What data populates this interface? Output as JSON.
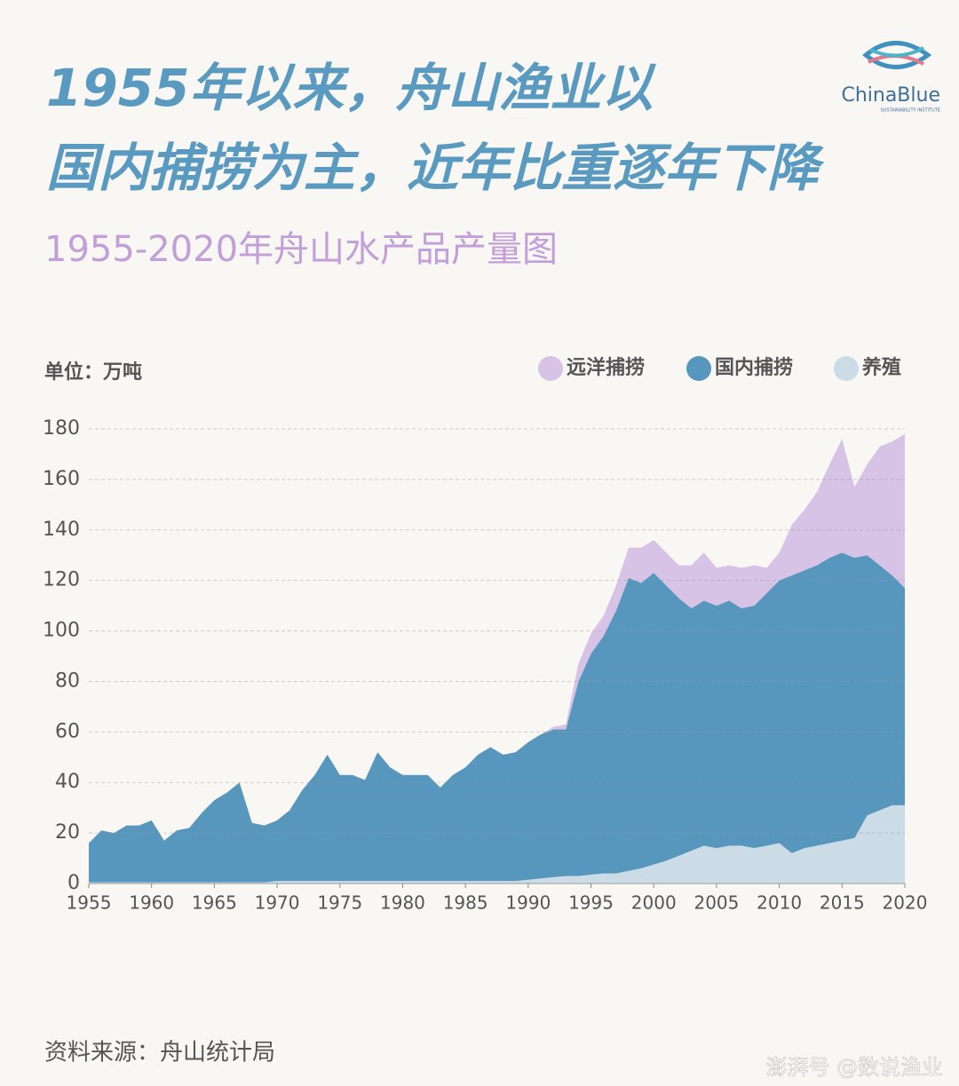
{
  "chart_data": {
    "type": "stacked_area",
    "title": [
      "1955年以来，舟山渔业以",
      "国内捕捞为主，近年比重逐年下降"
    ],
    "subtitle": "1955-2020年舟山水产品产量图",
    "y_label": "单位：万吨",
    "source": "资料来源：舟山统计局",
    "logo": {
      "name": "ChinaBlue",
      "tagline": "SUSTAINABILITY INSTITUTE"
    },
    "watermark": "澎湃号 @数说渔业",
    "x": [
      1955,
      1956,
      1957,
      1958,
      1959,
      1960,
      1961,
      1962,
      1963,
      1964,
      1965,
      1966,
      1967,
      1968,
      1969,
      1970,
      1971,
      1972,
      1973,
      1974,
      1975,
      1976,
      1977,
      1978,
      1979,
      1980,
      1981,
      1982,
      1983,
      1984,
      1985,
      1986,
      1987,
      1988,
      1989,
      1990,
      1991,
      1992,
      1993,
      1994,
      1995,
      1996,
      1997,
      1998,
      1999,
      2000,
      2001,
      2002,
      2003,
      2004,
      2005,
      2006,
      2007,
      2008,
      2009,
      2010,
      2011,
      2012,
      2013,
      2014,
      2015,
      2016,
      2017,
      2018,
      2019,
      2020
    ],
    "series": [
      {
        "name": "远洋捕捞",
        "color": "#d6c3e5",
        "values": [
          0,
          0,
          0,
          0,
          0,
          0,
          0,
          0,
          0,
          0,
          0,
          0,
          0,
          0,
          0,
          0,
          0,
          0,
          0,
          0,
          0,
          0,
          0,
          0,
          0,
          0,
          0,
          0,
          0,
          0,
          0,
          0,
          0,
          0,
          0,
          0,
          0,
          1,
          2,
          7,
          8,
          8,
          10,
          12,
          14,
          13,
          13,
          13,
          17,
          19,
          15,
          14,
          16,
          16,
          10,
          11,
          20,
          24,
          29,
          37,
          45,
          28,
          36,
          47,
          53,
          61
        ]
      },
      {
        "name": "国内捕捞",
        "color": "#5796bd",
        "values": [
          15.5,
          20.5,
          19.5,
          22.5,
          22.5,
          24.5,
          16.5,
          20.5,
          21.5,
          27.5,
          32.5,
          35.5,
          39.5,
          23.5,
          22.5,
          24,
          28,
          36,
          42,
          50,
          42,
          42,
          40,
          51,
          45,
          42,
          42,
          42,
          37,
          42,
          45,
          50,
          53,
          50,
          51,
          54.5,
          57,
          58.5,
          58,
          77,
          87.5,
          94,
          104,
          116,
          113,
          115.5,
          109,
          102,
          96,
          97,
          96,
          97,
          94,
          96,
          100,
          104,
          110,
          110,
          111,
          113,
          114,
          111,
          103,
          97,
          91,
          86
        ]
      },
      {
        "name": "养殖",
        "color": "#ccdce7",
        "values": [
          0.5,
          0.5,
          0.5,
          0.5,
          0.5,
          0.5,
          0.5,
          0.5,
          0.5,
          0.5,
          0.5,
          0.5,
          0.5,
          0.5,
          0.5,
          1,
          1,
          1,
          1,
          1,
          1,
          1,
          1,
          1,
          1,
          1,
          1,
          1,
          1,
          1,
          1,
          1,
          1,
          1,
          1,
          1.5,
          2,
          2.5,
          3,
          3,
          3.5,
          4,
          4,
          5,
          6,
          7.5,
          9,
          11,
          13,
          15,
          14,
          15,
          15,
          14,
          15,
          16,
          12,
          14,
          15,
          16,
          17,
          18,
          27,
          29,
          31,
          31
        ]
      }
    ],
    "xlim": [
      1955,
      2020
    ],
    "xticks": [
      1955,
      1960,
      1965,
      1970,
      1975,
      1980,
      1985,
      1990,
      1995,
      2000,
      2005,
      2010,
      2015,
      2020
    ],
    "ylim": [
      0,
      180
    ],
    "yticks": [
      0,
      20,
      40,
      60,
      80,
      100,
      120,
      140,
      160,
      180
    ],
    "grid": true
  }
}
